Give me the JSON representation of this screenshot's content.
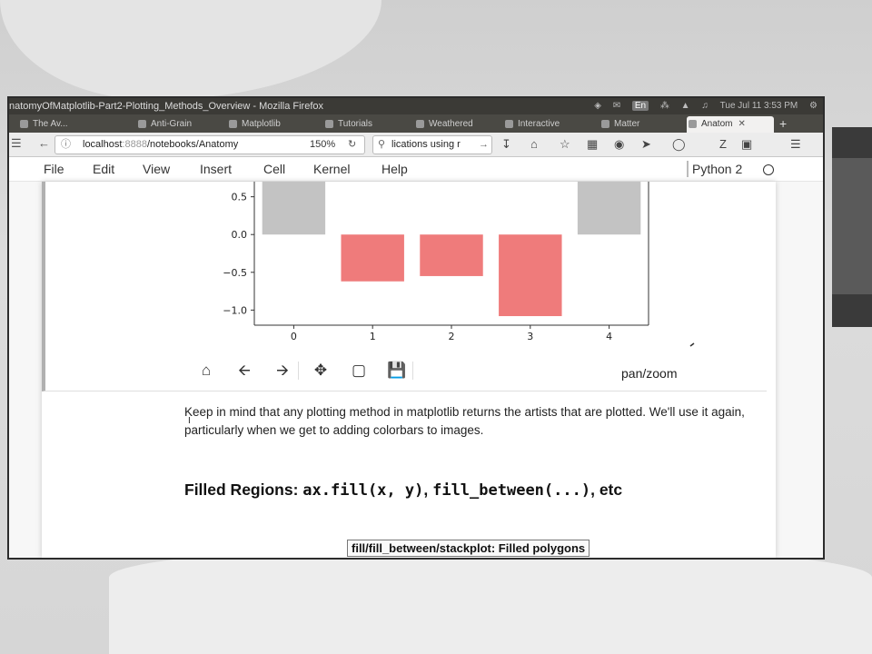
{
  "window": {
    "title": "natomyOfMatplotlib-Part2-Plotting_Methods_Overview - Mozilla Firefox",
    "tray": {
      "lang": "En",
      "clock": "Tue Jul 11 3:53 PM"
    }
  },
  "tabs": [
    {
      "label": "The Av...",
      "active": false
    },
    {
      "label": "Anti-Grain",
      "active": false
    },
    {
      "label": "Matplotlib",
      "active": false
    },
    {
      "label": "Tutorials",
      "active": false
    },
    {
      "label": "Weathered",
      "active": false
    },
    {
      "label": "Interactive",
      "active": false
    },
    {
      "label": "Matter",
      "active": false
    },
    {
      "label": "Anatom",
      "active": true
    }
  ],
  "navbar": {
    "url_host": "localhost",
    "url_port": ":8888",
    "url_path": "/notebooks/Anatomy",
    "zoom": "150%",
    "search_value": "lications using r"
  },
  "notebook": {
    "menu": [
      "File",
      "Edit",
      "View",
      "Insert",
      "Cell",
      "Kernel",
      "Help"
    ],
    "kernel": "Python 2"
  },
  "chart_data": {
    "type": "bar",
    "categories": [
      "0",
      "1",
      "2",
      "3",
      "4"
    ],
    "values": [
      0.9,
      -0.62,
      -0.55,
      -1.08,
      0.9
    ],
    "colors": [
      "#c3c3c3",
      "#ef7b7b",
      "#ef7b7b",
      "#ef7b7b",
      "#c3c3c3"
    ],
    "yticks": [
      "0.5",
      "0.0",
      "−0.5",
      "−1.0"
    ],
    "ytick_values": [
      0.5,
      0.0,
      -0.5,
      -1.0
    ],
    "ylim": [
      -1.2,
      0.7
    ],
    "title": "",
    "xlabel": "",
    "ylabel": "",
    "grid": false
  },
  "fig_toolbar": {
    "tools": [
      "home-icon",
      "back-icon",
      "forward-icon",
      "pan-icon",
      "zoom-rect-icon",
      "save-icon"
    ],
    "status": "pan/zoom"
  },
  "markdown": {
    "paragraph": "Keep in mind that any plotting method in matplotlib returns the artists that are plotted. We'll use it again, particularly when we get to adding colorbars to images.",
    "heading_prefix": "Filled Regions: ",
    "heading_code1": "ax.fill(x, y)",
    "heading_sep": ", ",
    "heading_code2": "fill_between(...)",
    "heading_suffix": ", etc",
    "tooltip": "fill/fill_between/stackplot: Filled polygons"
  }
}
